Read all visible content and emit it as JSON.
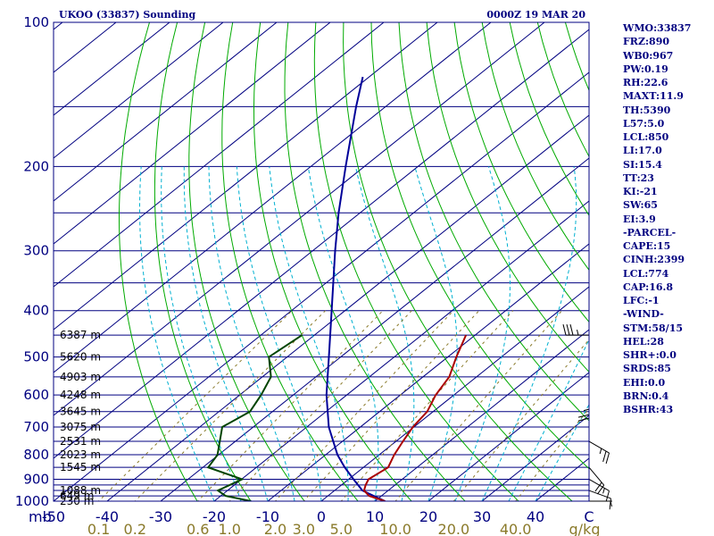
{
  "header": {
    "station": "UKOO (33837) Sounding",
    "time": "0000Z 19 MAR 20"
  },
  "indices": [
    "WMO:33837",
    "FRZ:890",
    "WB0:967",
    "PW:0.19",
    "RH:22.6",
    "MAXT:11.9",
    "TH:5390",
    "L57:5.0",
    "LCL:850",
    "LI:17.0",
    "SI:15.4",
    "TT:23",
    "KI:-21",
    "SW:65",
    "EI:3.9",
    "-PARCEL-",
    "CAPE:15",
    "CINH:2399",
    "LCL:774",
    "CAP:16.8",
    "LFC:-1",
    "-WIND-",
    "STM:58/15",
    "HEL:28",
    "SHR+:0.0",
    "SRDS:85",
    "EHI:0.0",
    "BRN:0.4",
    "BSHR:43"
  ],
  "colors": {
    "frame": "#000080",
    "isobar": "#000080",
    "isotherm": "#000080",
    "dry_adiabat": "#00aa00",
    "moist_adiabat": "#00b0d0",
    "mixing_ratio": "#8a7a2a",
    "parcel": "#000099",
    "temperature": "#aa0000",
    "dewpoint": "#004400",
    "wind": "#000000"
  },
  "chart_data": {
    "type": "line",
    "title": "UKOO (33837) Sounding",
    "subtitle": "0000Z 19 MAR 20",
    "xlabel": "C",
    "ylabel": "mb",
    "xlim": [
      -50,
      50
    ],
    "ylim": [
      1000,
      100
    ],
    "y_scale": "log",
    "skew": true,
    "grid": true,
    "pressure_ticks": [
      "100",
      "200",
      "300",
      "400",
      "500",
      "600",
      "700",
      "800",
      "900",
      "1000"
    ],
    "temperature_ticks": [
      "-50",
      "-40",
      "-30",
      "-20",
      "-10",
      "0",
      "10",
      "20",
      "30",
      "40",
      "C"
    ],
    "mixing_ratio_ticks": [
      "0.1",
      "0.2",
      "0.6",
      "1.0",
      "2.0",
      "3.0",
      "5.0",
      "10.0",
      "20.0",
      "40.0",
      "g/kg"
    ],
    "height_labels": [
      {
        "p": 1000,
        "label": "230 m"
      },
      {
        "p": 975,
        "label": "649 m"
      },
      {
        "p": 950,
        "label": "1088 m"
      },
      {
        "p": 850,
        "label": "1545 m"
      },
      {
        "p": 800,
        "label": "2023 m"
      },
      {
        "p": 750,
        "label": "2531 m"
      },
      {
        "p": 700,
        "label": "3075 m"
      },
      {
        "p": 650,
        "label": "3645 m"
      },
      {
        "p": 600,
        "label": "4248 m"
      },
      {
        "p": 550,
        "label": "4903 m"
      },
      {
        "p": 500,
        "label": "5620 m"
      },
      {
        "p": 450,
        "label": "6387 m"
      }
    ],
    "series": [
      {
        "key": "parcel",
        "points": [
          [
            1000,
            11.9
          ],
          [
            950,
            5.2
          ],
          [
            900,
            0.9
          ],
          [
            850,
            -3.5
          ],
          [
            800,
            -7.8
          ],
          [
            700,
            -15.9
          ],
          [
            600,
            -23.8
          ],
          [
            500,
            -32.2
          ],
          [
            400,
            -42.5
          ],
          [
            300,
            -55.8
          ],
          [
            250,
            -64.0
          ],
          [
            200,
            -73.5
          ],
          [
            150,
            -85.5
          ],
          [
            130,
            -91.2
          ]
        ]
      },
      {
        "key": "temperature",
        "points": [
          [
            1000,
            11.9
          ],
          [
            975,
            7.7
          ],
          [
            950,
            5.5
          ],
          [
            925,
            4.5
          ],
          [
            900,
            3.7
          ],
          [
            850,
            4.6
          ],
          [
            800,
            2.8
          ],
          [
            750,
            1.3
          ],
          [
            700,
            -0.2
          ],
          [
            650,
            -1.1
          ],
          [
            600,
            -3.4
          ],
          [
            550,
            -5.1
          ],
          [
            500,
            -8.4
          ],
          [
            450,
            -11.7
          ]
        ]
      },
      {
        "key": "dewpoint",
        "points": [
          [
            1000,
            -13.1
          ],
          [
            975,
            -19.1
          ],
          [
            950,
            -21.8
          ],
          [
            900,
            -19.9
          ],
          [
            850,
            -29.0
          ],
          [
            800,
            -30.2
          ],
          [
            700,
            -35.8
          ],
          [
            650,
            -34.2
          ],
          [
            600,
            -36.0
          ],
          [
            550,
            -38.4
          ],
          [
            500,
            -43.4
          ],
          [
            450,
            -42.3
          ]
        ]
      }
    ],
    "wind_barbs": [
      {
        "p": 1000,
        "dir": 90,
        "speed": 5
      },
      {
        "p": 950,
        "dir": 110,
        "speed": 10
      },
      {
        "p": 900,
        "dir": 120,
        "speed": 15
      },
      {
        "p": 850,
        "dir": 140,
        "speed": 20
      },
      {
        "p": 750,
        "dir": 120,
        "speed": 25
      },
      {
        "p": 600,
        "dir": 180,
        "speed": 25
      },
      {
        "p": 450,
        "dir": 270,
        "speed": 35
      }
    ]
  }
}
